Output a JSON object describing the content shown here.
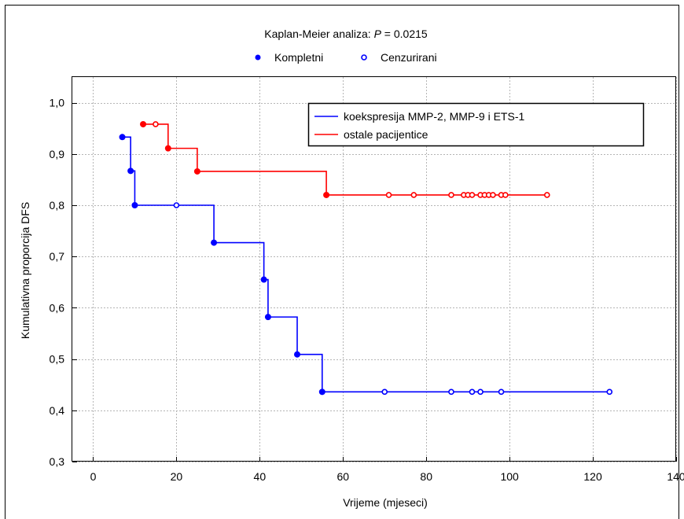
{
  "chart_data": {
    "type": "line",
    "title_prefix": "Kaplan-Meier analiza: ",
    "title_p_symbol": "P",
    "title_p_value": " = 0.0215",
    "xlabel": "Vrijeme (mjeseci)",
    "ylabel": "Kumulativna proporcija DFS",
    "xlim": [
      -5,
      140
    ],
    "ylim": [
      0.3,
      1.05
    ],
    "xticks": [
      0,
      20,
      40,
      60,
      80,
      100,
      120,
      140
    ],
    "xtick_labels": [
      "0",
      "20",
      "40",
      "60",
      "80",
      "100",
      "120",
      "140"
    ],
    "yticks": [
      0.3,
      0.4,
      0.5,
      0.6,
      0.7,
      0.8,
      0.9,
      1.0
    ],
    "ytick_labels": [
      "0,3",
      "0,4",
      "0,5",
      "0,6",
      "0,7",
      "0,8",
      "0,9",
      "1,0"
    ],
    "grid": true,
    "marker_legend": {
      "complete_label": "Kompletni",
      "censored_label": "Cenzurirani"
    },
    "legend_position": "top-right",
    "series": [
      {
        "name": "koekspresija MMP-2, MMP-9 i ETS-1",
        "color": "#0000ff",
        "steps": [
          [
            7,
            0.933
          ],
          [
            9,
            0.867
          ],
          [
            10,
            0.8
          ],
          [
            29,
            0.727
          ],
          [
            41,
            0.655
          ],
          [
            42,
            0.582
          ],
          [
            49,
            0.509
          ],
          [
            55,
            0.436
          ]
        ],
        "end_x": 124,
        "events": [
          [
            7,
            0.933
          ],
          [
            9,
            0.867
          ],
          [
            10,
            0.8
          ],
          [
            29,
            0.727
          ],
          [
            41,
            0.655
          ],
          [
            42,
            0.582
          ],
          [
            49,
            0.509
          ],
          [
            55,
            0.436
          ]
        ],
        "censored": [
          [
            20,
            0.8
          ],
          [
            70,
            0.436
          ],
          [
            86,
            0.436
          ],
          [
            91,
            0.436
          ],
          [
            93,
            0.436
          ],
          [
            98,
            0.436
          ],
          [
            124,
            0.436
          ]
        ]
      },
      {
        "name": "ostale pacijentice",
        "color": "#ff0000",
        "steps": [
          [
            12,
            0.958
          ],
          [
            18,
            0.911
          ],
          [
            25,
            0.866
          ],
          [
            56,
            0.82
          ]
        ],
        "end_x": 109,
        "events": [
          [
            12,
            0.958
          ],
          [
            18,
            0.911
          ],
          [
            25,
            0.866
          ],
          [
            56,
            0.82
          ]
        ],
        "censored": [
          [
            15,
            0.958
          ],
          [
            71,
            0.82
          ],
          [
            77,
            0.82
          ],
          [
            86,
            0.82
          ],
          [
            89,
            0.82
          ],
          [
            90,
            0.82
          ],
          [
            91,
            0.82
          ],
          [
            93,
            0.82
          ],
          [
            94,
            0.82
          ],
          [
            95,
            0.82
          ],
          [
            96,
            0.82
          ],
          [
            98,
            0.82
          ],
          [
            99,
            0.82
          ],
          [
            109,
            0.82
          ]
        ]
      }
    ]
  }
}
